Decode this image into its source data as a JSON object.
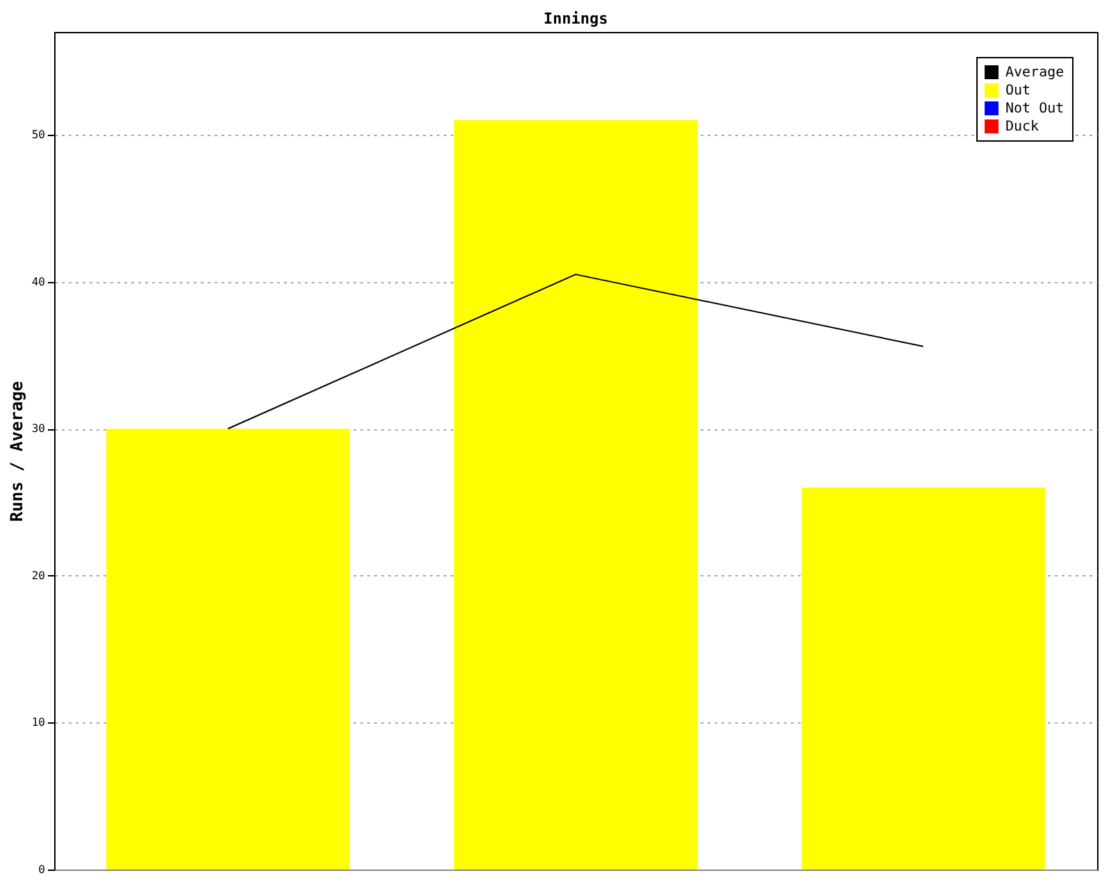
{
  "chart_data": {
    "type": "bar",
    "title": "Innings",
    "ylabel": "Runs / Average",
    "categories": [
      null,
      null,
      null
    ],
    "series": [
      {
        "name": "Average",
        "type": "line",
        "color": "#000000",
        "values": [
          30,
          40.5,
          35.6
        ]
      },
      {
        "name": "Out",
        "color": "#ffff00",
        "values": [
          30,
          51,
          26
        ]
      },
      {
        "name": "Not Out",
        "color": "#0000ff",
        "values": [
          null,
          null,
          null
        ]
      },
      {
        "name": "Duck",
        "color": "#ff0000",
        "values": [
          null,
          null,
          null
        ]
      }
    ],
    "ylim": [
      0,
      57
    ],
    "yticks": [
      0,
      10,
      20,
      30,
      40,
      50
    ],
    "grid": "y",
    "legend": "top right",
    "tick_labels": "y"
  }
}
